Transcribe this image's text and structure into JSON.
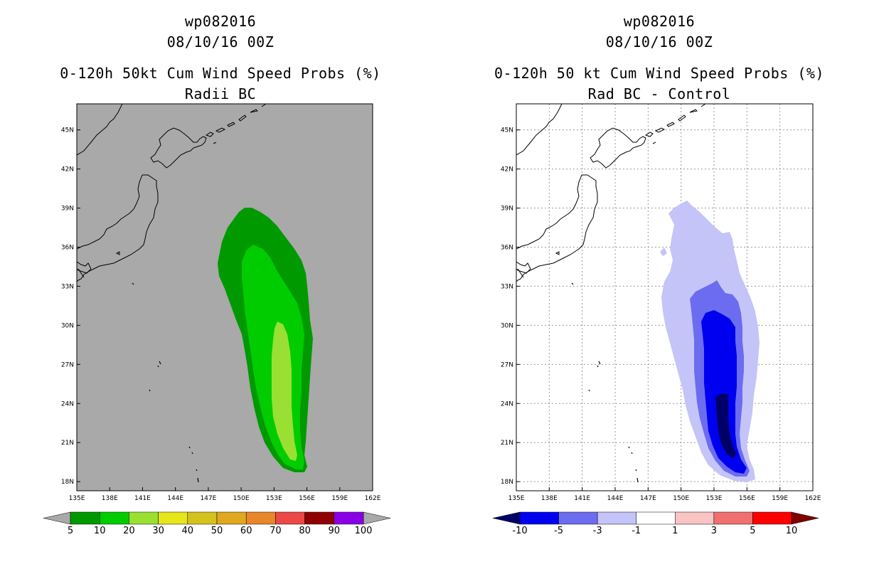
{
  "left_panel": {
    "id_line": "wp082016",
    "date_line": "08/10/16 00Z",
    "title": "0-120h 50kt Cum Wind Speed Probs (%)",
    "subtitle": "Radii BC",
    "background_color": "#a9a9a9",
    "colorbar": {
      "labels": [
        "5",
        "10",
        "20",
        "30",
        "40",
        "50",
        "60",
        "70",
        "80",
        "90",
        "100"
      ],
      "colors": [
        "#009900",
        "#00cc00",
        "#99e033",
        "#e6e61a",
        "#d4c21e",
        "#e0a820",
        "#e8862a",
        "#ec4848",
        "#8f0000",
        "#8a00e6"
      ],
      "under_color": "#a9a9a9",
      "over_color": "#a9a9a9"
    }
  },
  "right_panel": {
    "id_line": "wp082016",
    "date_line": "08/10/16 00Z",
    "title": "0-120h 50 kt Cum Wind Speed Probs (%)",
    "subtitle": "Rad BC - Control",
    "background_color": "#ffffff",
    "colorbar": {
      "labels": [
        "-10",
        "-5",
        "-3",
        "-1",
        "1",
        "3",
        "5",
        "10"
      ],
      "colors": [
        "#0000f0",
        "#6c6cf0",
        "#c4c4f8",
        "#ffffff",
        "#f8c4c4",
        "#f07070",
        "#ff0000"
      ],
      "under_color": "#000066",
      "over_color": "#800000"
    }
  },
  "axes": {
    "lon_labels": [
      "135E",
      "138E",
      "141E",
      "144E",
      "147E",
      "150E",
      "153E",
      "156E",
      "159E",
      "162E"
    ],
    "lat_labels": [
      "18N",
      "21N",
      "24N",
      "27N",
      "30N",
      "33N",
      "36N",
      "39N",
      "42N",
      "45N"
    ],
    "lon_range": [
      135,
      162
    ],
    "lat_range": [
      17.3,
      47
    ]
  },
  "probability_contours": [
    {
      "level": "5-10",
      "color": "#009900"
    },
    {
      "level": "10-20",
      "color": "#00cc00"
    },
    {
      "level": "20-30",
      "color": "#99e033"
    }
  ],
  "difference_contours": [
    {
      "level": "-3 to -1",
      "color": "#c4c4f8"
    },
    {
      "level": "-5 to -3",
      "color": "#6c6cf0"
    },
    {
      "level": "-10 to -5",
      "color": "#0000f0"
    },
    {
      "level": "below -10",
      "color": "#000066"
    }
  ]
}
